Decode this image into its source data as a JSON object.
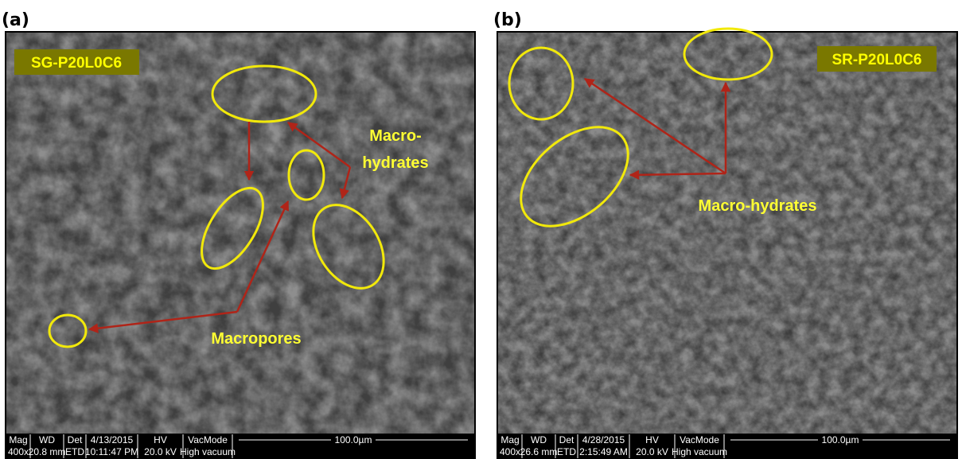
{
  "panels": [
    {
      "label": "(a)",
      "tag": "SG-P20L0C6",
      "annotations": [
        "Macro-",
        "hydrates",
        "Macropores"
      ],
      "info": {
        "headers": [
          "Mag",
          "WD",
          "Det",
          "4/13/2015",
          "HV",
          "VacMode"
        ],
        "values": [
          "400x",
          "20.8 mm",
          "ETD",
          "10:11:47 PM",
          "20.0 kV",
          "High vacuum"
        ],
        "scale": "100.0µm"
      }
    },
    {
      "label": "(b)",
      "tag": "SR-P20L0C6",
      "annotations": [
        "Macro-hydrates"
      ],
      "info": {
        "headers": [
          "Mag",
          "WD",
          "Det",
          "4/28/2015",
          "HV",
          "VacMode"
        ],
        "values": [
          "400x",
          "26.6 mm",
          "ETD",
          "2:15:49 AM",
          "20.0 kV",
          "High vacuum"
        ],
        "scale": "100.0µm"
      }
    }
  ]
}
